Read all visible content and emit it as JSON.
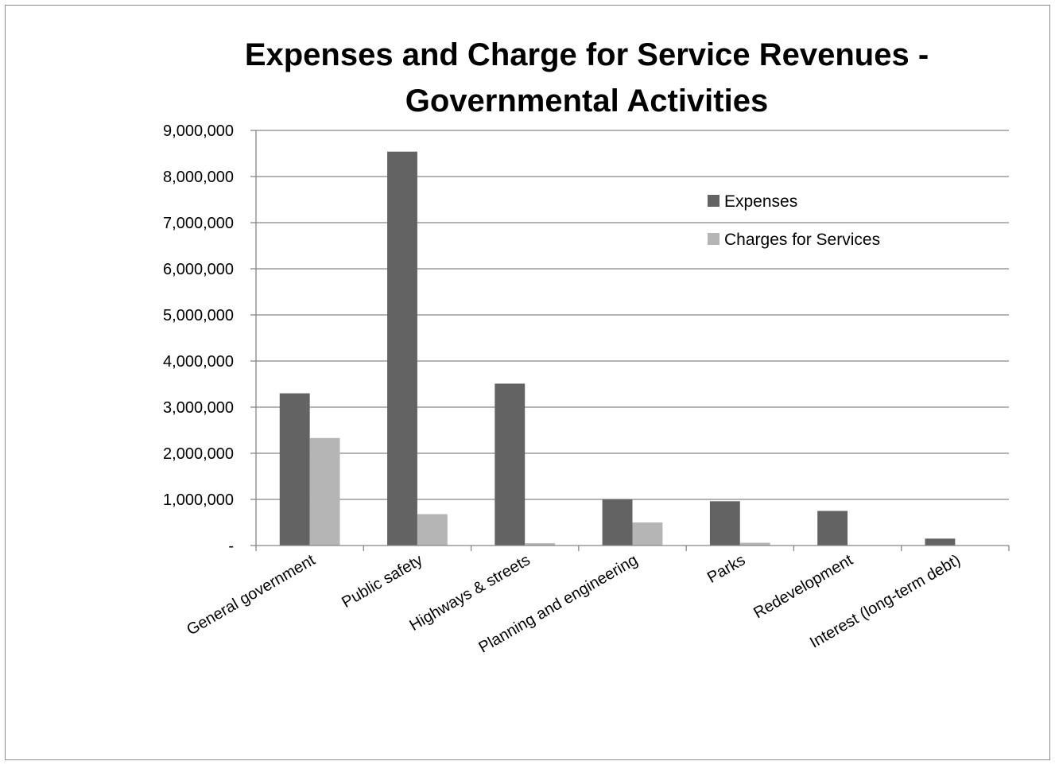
{
  "chart_data": {
    "type": "bar",
    "title_lines": [
      "Expenses and Charge for Service Revenues -",
      "Governmental Activities"
    ],
    "categories": [
      "General government",
      "Public safety",
      "Highways & streets",
      "Planning and engineering",
      "Parks",
      "Redevelopment",
      "Interest (long-term debt)"
    ],
    "series": [
      {
        "name": "Expenses",
        "color": "#636363",
        "values": [
          3300000,
          8540000,
          3510000,
          1000000,
          960000,
          750000,
          150000
        ]
      },
      {
        "name": "Charges for Services",
        "color": "#b5b5b5",
        "values": [
          2330000,
          680000,
          50000,
          500000,
          60000,
          0,
          0
        ]
      }
    ],
    "ylim": [
      0,
      9000000
    ],
    "y_ticks": [
      0,
      1000000,
      2000000,
      3000000,
      4000000,
      5000000,
      6000000,
      7000000,
      8000000,
      9000000
    ],
    "y_tick_labels": [
      "-",
      "1,000,000",
      "2,000,000",
      "3,000,000",
      "4,000,000",
      "5,000,000",
      "6,000,000",
      "7,000,000",
      "8,000,000",
      "9,000,000"
    ],
    "xlabel": "",
    "ylabel": "",
    "grid": true,
    "legend_position": "top-right"
  }
}
